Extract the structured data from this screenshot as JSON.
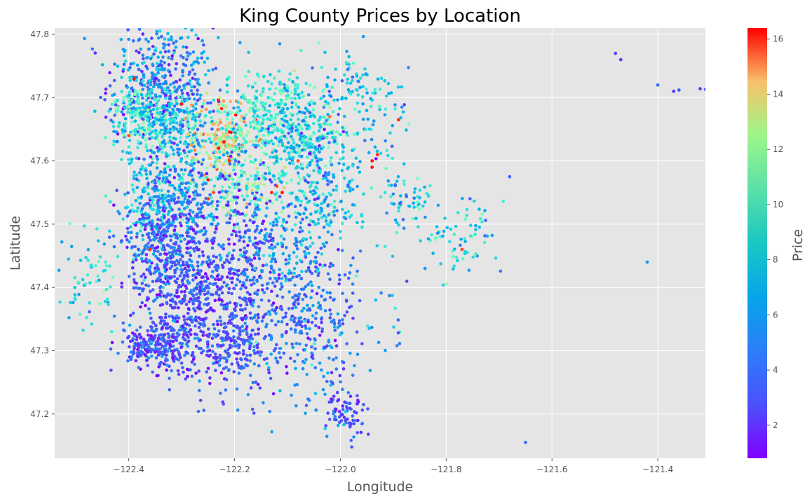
{
  "chart_data": {
    "type": "scatter",
    "title": "King County Prices by Location",
    "xlabel": "Longitude",
    "ylabel": "Latitude",
    "xlim": [
      -122.54,
      -121.31
    ],
    "ylim": [
      47.13,
      47.81
    ],
    "xticks": [
      -122.4,
      -122.2,
      -122.0,
      -121.8,
      -121.6,
      -121.4
    ],
    "yticks": [
      47.2,
      47.3,
      47.4,
      47.5,
      47.6,
      47.7,
      47.8
    ],
    "grid": true,
    "colorbar": {
      "label": "Price",
      "range": [
        0.8,
        16.4
      ],
      "ticks": [
        2,
        4,
        6,
        8,
        10,
        12,
        14,
        16
      ],
      "colormap": "rainbow"
    },
    "clusters": [
      {
        "x": -122.34,
        "y": 47.72,
        "sx": 0.05,
        "sy": 0.05,
        "n": 450,
        "price": 3.5,
        "spread": 2.0
      },
      {
        "x": -122.33,
        "y": 47.66,
        "sx": 0.04,
        "sy": 0.03,
        "n": 200,
        "price": 5.5,
        "spread": 2.5
      },
      {
        "x": -122.38,
        "y": 47.67,
        "sx": 0.03,
        "sy": 0.03,
        "n": 120,
        "price": 7.0,
        "spread": 2.5
      },
      {
        "x": -122.22,
        "y": 47.64,
        "sx": 0.03,
        "sy": 0.03,
        "n": 200,
        "price": 11.0,
        "spread": 4.0
      },
      {
        "x": -122.19,
        "y": 47.56,
        "sx": 0.05,
        "sy": 0.03,
        "n": 180,
        "price": 7.5,
        "spread": 4.0
      },
      {
        "x": -122.12,
        "y": 47.67,
        "sx": 0.06,
        "sy": 0.04,
        "n": 380,
        "price": 6.5,
        "spread": 2.5
      },
      {
        "x": -122.05,
        "y": 47.62,
        "sx": 0.05,
        "sy": 0.05,
        "n": 260,
        "price": 5.0,
        "spread": 2.5
      },
      {
        "x": -122.3,
        "y": 47.55,
        "sx": 0.03,
        "sy": 0.05,
        "n": 220,
        "price": 4.0,
        "spread": 2.0
      },
      {
        "x": -122.36,
        "y": 47.53,
        "sx": 0.03,
        "sy": 0.04,
        "n": 180,
        "price": 5.0,
        "spread": 2.0
      },
      {
        "x": -122.33,
        "y": 47.45,
        "sx": 0.04,
        "sy": 0.06,
        "n": 400,
        "price": 2.5,
        "spread": 1.5
      },
      {
        "x": -122.28,
        "y": 47.38,
        "sx": 0.03,
        "sy": 0.07,
        "n": 300,
        "price": 2.5,
        "spread": 1.5
      },
      {
        "x": -122.35,
        "y": 47.31,
        "sx": 0.03,
        "sy": 0.02,
        "n": 220,
        "price": 2.5,
        "spread": 1.5
      },
      {
        "x": -122.19,
        "y": 47.43,
        "sx": 0.04,
        "sy": 0.08,
        "n": 400,
        "price": 2.5,
        "spread": 1.5
      },
      {
        "x": -122.2,
        "y": 47.31,
        "sx": 0.03,
        "sy": 0.03,
        "n": 150,
        "price": 2.5,
        "spread": 1.2
      },
      {
        "x": -122.07,
        "y": 47.37,
        "sx": 0.05,
        "sy": 0.05,
        "n": 250,
        "price": 3.0,
        "spread": 1.5
      },
      {
        "x": -122.1,
        "y": 47.47,
        "sx": 0.04,
        "sy": 0.04,
        "n": 120,
        "price": 4.5,
        "spread": 2.0
      },
      {
        "x": -122.03,
        "y": 47.53,
        "sx": 0.04,
        "sy": 0.03,
        "n": 120,
        "price": 5.0,
        "spread": 2.0
      },
      {
        "x": -121.99,
        "y": 47.2,
        "sx": 0.02,
        "sy": 0.02,
        "n": 70,
        "price": 2.5,
        "spread": 1.5
      },
      {
        "x": -122.05,
        "y": 47.27,
        "sx": 0.05,
        "sy": 0.04,
        "n": 80,
        "price": 3.5,
        "spread": 2.0
      },
      {
        "x": -121.97,
        "y": 47.73,
        "sx": 0.02,
        "sy": 0.02,
        "n": 40,
        "price": 5.0,
        "spread": 1.5
      },
      {
        "x": -121.92,
        "y": 47.67,
        "sx": 0.03,
        "sy": 0.04,
        "n": 50,
        "price": 5.0,
        "spread": 2.0
      },
      {
        "x": -121.88,
        "y": 47.54,
        "sx": 0.03,
        "sy": 0.02,
        "n": 60,
        "price": 5.0,
        "spread": 2.0
      },
      {
        "x": -121.77,
        "y": 47.48,
        "sx": 0.04,
        "sy": 0.03,
        "n": 70,
        "price": 5.5,
        "spread": 2.5
      },
      {
        "x": -122.48,
        "y": 47.42,
        "sx": 0.03,
        "sy": 0.04,
        "n": 60,
        "price": 6.0,
        "spread": 2.0
      },
      {
        "x": -121.93,
        "y": 47.36,
        "sx": 0.04,
        "sy": 0.04,
        "n": 30,
        "price": 4.5,
        "spread": 2.0
      }
    ],
    "points": [
      {
        "x": -121.48,
        "y": 47.77,
        "price": 2.0
      },
      {
        "x": -121.47,
        "y": 47.76,
        "price": 2.0
      },
      {
        "x": -121.4,
        "y": 47.72,
        "price": 3.0
      },
      {
        "x": -121.37,
        "y": 47.71,
        "price": 2.0
      },
      {
        "x": -121.36,
        "y": 47.712,
        "price": 2.5
      },
      {
        "x": -121.32,
        "y": 47.714,
        "price": 2.0
      },
      {
        "x": -121.31,
        "y": 47.713,
        "price": 2.5
      },
      {
        "x": -121.42,
        "y": 47.44,
        "price": 4.0
      },
      {
        "x": -121.65,
        "y": 47.155,
        "price": 3.0
      },
      {
        "x": -121.68,
        "y": 47.575,
        "price": 3.0
      },
      {
        "x": -121.84,
        "y": 47.43,
        "price": 4.0
      },
      {
        "x": -121.77,
        "y": 47.46,
        "price": 15.0
      },
      {
        "x": -121.89,
        "y": 47.665,
        "price": 15.5
      },
      {
        "x": -121.93,
        "y": 47.61,
        "price": 15.5
      },
      {
        "x": -121.94,
        "y": 47.59,
        "price": 16.0
      },
      {
        "x": -121.94,
        "y": 47.6,
        "price": 16.0
      },
      {
        "x": -122.23,
        "y": 47.62,
        "price": 16.0
      },
      {
        "x": -122.22,
        "y": 47.63,
        "price": 16.0
      },
      {
        "x": -122.21,
        "y": 47.6,
        "price": 15.5
      },
      {
        "x": -122.25,
        "y": 47.57,
        "price": 16.0
      },
      {
        "x": -122.24,
        "y": 47.55,
        "price": 15.0
      },
      {
        "x": -122.13,
        "y": 47.55,
        "price": 15.5
      },
      {
        "x": -122.12,
        "y": 47.56,
        "price": 15.0
      },
      {
        "x": -122.11,
        "y": 47.55,
        "price": 16.0
      },
      {
        "x": -122.08,
        "y": 47.6,
        "price": 15.0
      },
      {
        "x": -122.4,
        "y": 47.64,
        "price": 15.0
      },
      {
        "x": -122.39,
        "y": 47.73,
        "price": 16.0
      },
      {
        "x": -122.3,
        "y": 47.69,
        "price": 16.0
      },
      {
        "x": -122.36,
        "y": 47.46,
        "price": 15.5
      },
      {
        "x": -122.02,
        "y": 47.67,
        "price": 14.0
      },
      {
        "x": -122.25,
        "y": 47.54,
        "price": 15.5
      }
    ]
  }
}
